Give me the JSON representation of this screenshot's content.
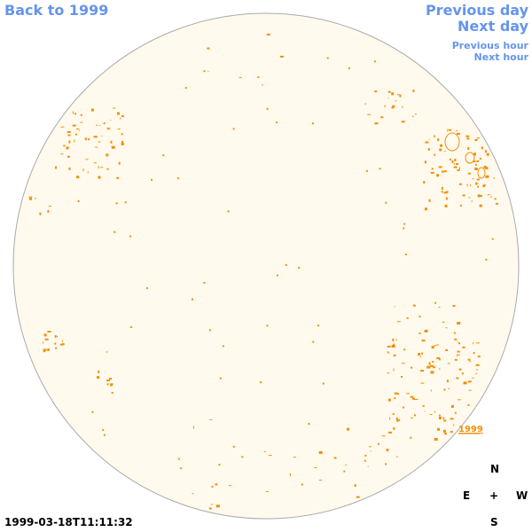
{
  "nav": {
    "back": "Back to 1999",
    "previous_day": "Previous day",
    "next_day": "Next day",
    "previous_hour": "Previous hour",
    "next_hour": "Next hour"
  },
  "disk": {
    "year_label": "1999"
  },
  "compass": {
    "north": "N",
    "east": "E",
    "center": "+",
    "west": "W",
    "south": "S"
  },
  "timestamp": "1999-03-18T11:11:32"
}
